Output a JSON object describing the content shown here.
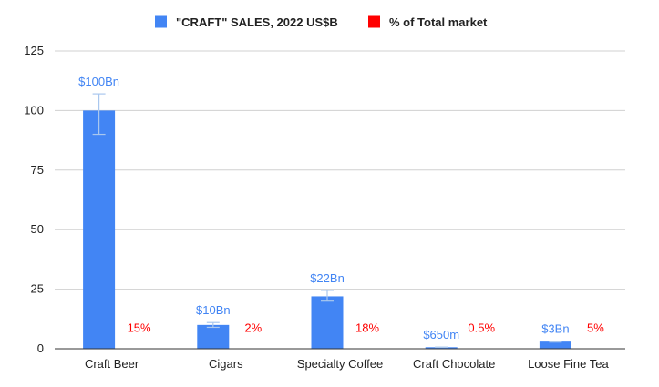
{
  "chart_data": {
    "type": "bar",
    "title": "",
    "xlabel": "",
    "ylabel": "",
    "ylim": [
      0,
      125
    ],
    "yticks": [
      0,
      25,
      50,
      75,
      100,
      125
    ],
    "grid": true,
    "legend_position": "top",
    "categories": [
      "Craft Beer",
      "Cigars",
      "Specialty Coffee",
      "Craft Chocolate",
      "Loose Fine Tea"
    ],
    "series": [
      {
        "name": "\"CRAFT\" SALES, 2022 US$B",
        "color": "#4285f4",
        "values": [
          100,
          10,
          22,
          0.65,
          3
        ],
        "labels": [
          "$100Bn",
          "$10Bn",
          "$22Bn",
          "$650m",
          "$3Bn"
        ],
        "error_bars": [
          [
            90,
            107
          ],
          [
            9,
            11
          ],
          [
            20,
            24.5
          ],
          [
            0.6,
            0.7
          ],
          [
            2.8,
            3.2
          ]
        ]
      },
      {
        "name": "% of Total market",
        "color": "#ff0000",
        "values": [
          15,
          2,
          18,
          0.5,
          5
        ],
        "labels": [
          "15%",
          "2%",
          "18%",
          "0.5%",
          "5%"
        ]
      }
    ]
  }
}
